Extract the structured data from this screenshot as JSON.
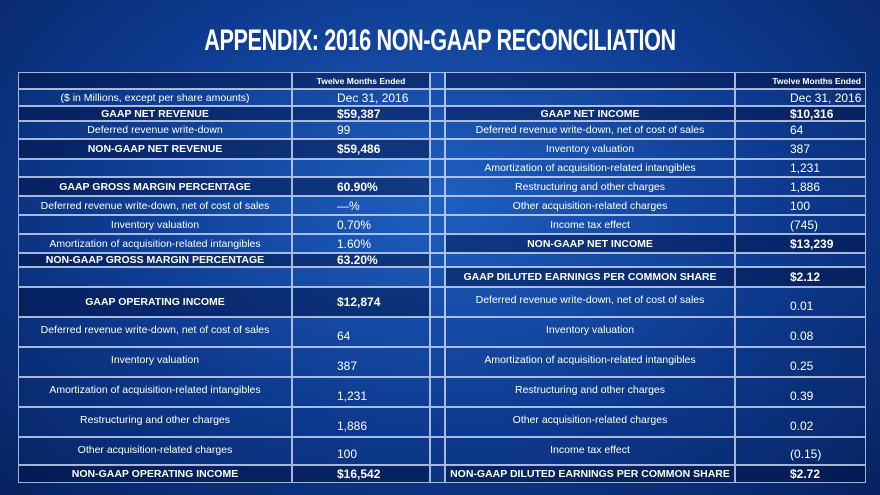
{
  "header": {
    "title": "APPENDIX: 2016 NON-GAAP RECONCILIATION"
  },
  "table": {
    "rows": [
      {
        "left": {
          "value": "Twelve Months Ended",
          "bold": true
        },
        "right": {
          "value": "Twelve Months Ended",
          "bold": true
        }
      },
      {
        "left": {
          "label": "($ in Millions, except per share amounts)",
          "value": "Dec 31, 2016"
        },
        "right": {
          "value": "Dec 31, 2016"
        }
      },
      {
        "left": {
          "label": "GAAP NET REVENUE",
          "value": "$59,387",
          "bold": true
        },
        "right": {
          "label": "GAAP NET INCOME",
          "value": "$10,316",
          "bold": true
        }
      },
      {
        "left": {
          "label": "Deferred revenue write-down",
          "value": "99"
        },
        "right": {
          "label": "Deferred revenue write-down, net of cost of sales",
          "value": "64"
        }
      },
      {
        "left": {
          "label": "NON-GAAP NET REVENUE",
          "value": "$59,486",
          "bold": true
        },
        "right": {
          "label": "Inventory valuation",
          "value": "387"
        }
      },
      {
        "right": {
          "label": "Amortization of acquisition-related intangibles",
          "value": "1,231"
        }
      },
      {
        "left": {
          "label": "GAAP GROSS MARGIN PERCENTAGE",
          "value": "60.90%",
          "bold": true
        },
        "right": {
          "label": "Restructuring and other charges",
          "value": "1,886"
        }
      },
      {
        "left": {
          "label": "Deferred revenue write-down, net of cost of sales",
          "value": "—%"
        },
        "right": {
          "label": "Other acquisition-related charges",
          "value": "100"
        }
      },
      {
        "left": {
          "label": "Inventory valuation",
          "value": "0.70%"
        },
        "right": {
          "label": "Income tax effect",
          "value": "(745)"
        }
      },
      {
        "left": {
          "label": "Amortization of acquisition-related intangibles",
          "value": "1.60%"
        },
        "right": {
          "label": "NON-GAAP NET INCOME",
          "value": "$13,239",
          "bold": true
        }
      },
      {
        "left": {
          "label": "NON-GAAP GROSS MARGIN PERCENTAGE",
          "value": "63.20%",
          "bold": true
        }
      },
      {
        "right": {
          "label": "GAAP DILUTED EARNINGS PER COMMON SHARE",
          "value": "$2.12",
          "bold": true
        }
      },
      {
        "left": {
          "label": "GAAP OPERATING INCOME",
          "value": "$12,874",
          "bold": true
        },
        "right": {
          "label": "Deferred revenue write-down, net of cost of sales",
          "value": "0.01"
        }
      },
      {
        "left": {
          "label": "Deferred revenue write-down, net of cost of sales",
          "value": "64"
        },
        "right": {
          "label": "Inventory valuation",
          "value": "0.08"
        }
      },
      {
        "left": {
          "label": "Inventory valuation",
          "value": "387"
        },
        "right": {
          "label": "Amortization of acquisition-related intangibles",
          "value": "0.25"
        }
      },
      {
        "left": {
          "label": "Amortization of acquisition-related intangibles",
          "value": "1,231"
        },
        "right": {
          "label": "Restructuring and other charges",
          "value": "0.39"
        }
      },
      {
        "left": {
          "label": "Restructuring and other charges",
          "value": "1,886"
        },
        "right": {
          "label": "Other acquisition-related charges",
          "value": "0.02"
        }
      },
      {
        "left": {
          "label": "Other acquisition-related charges",
          "value": "100"
        },
        "right": {
          "label": "Income tax effect",
          "value": "(0.15)"
        }
      },
      {
        "left": {
          "label": "NON-GAAP OPERATING INCOME",
          "value": "$16,542",
          "bold": true
        },
        "right": {
          "label": "NON-GAAP DILUTED EARNINGS PER COMMON SHARE",
          "value": "$2.72",
          "bold": true
        }
      }
    ]
  }
}
